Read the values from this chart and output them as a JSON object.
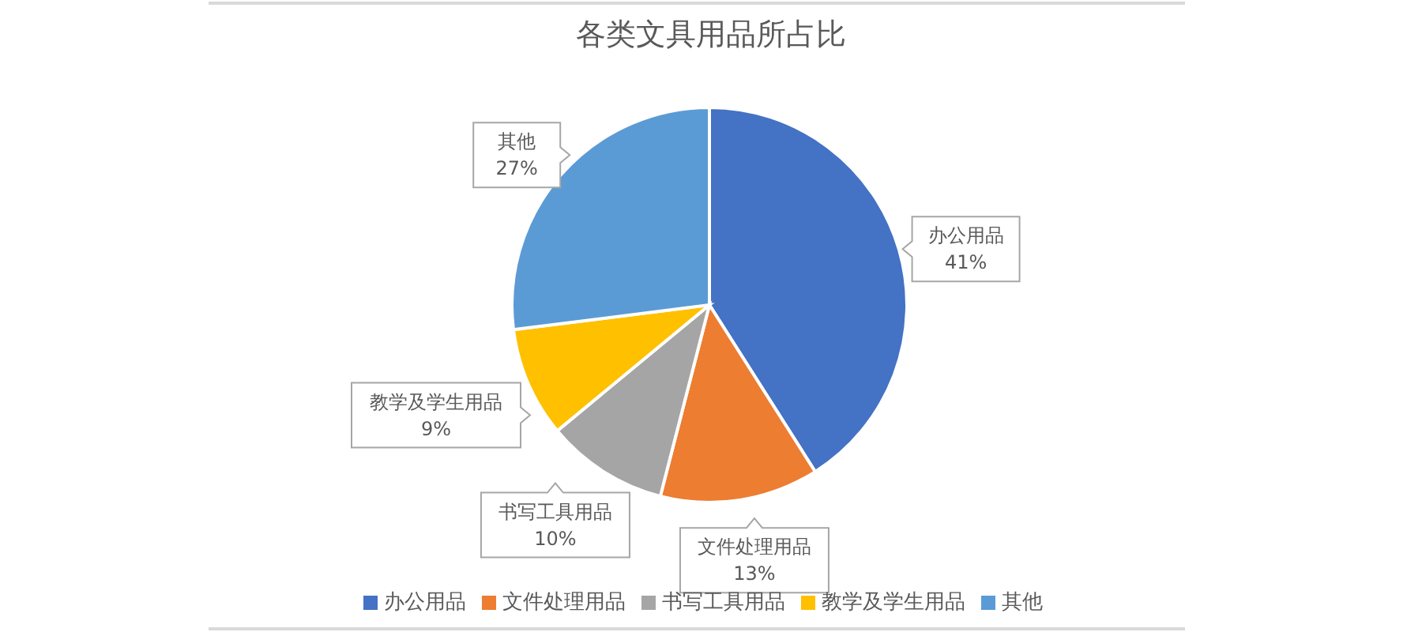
{
  "chart_data": {
    "type": "pie",
    "title": "各类文具用品所占比",
    "categories": [
      "办公用品",
      "文件处理用品",
      "书写工具用品",
      "教学及学生用品",
      "其他"
    ],
    "values": [
      41,
      13,
      10,
      9,
      27
    ],
    "colors": [
      "#4472c4",
      "#ed7d31",
      "#a5a5a5",
      "#ffc000",
      "#5b9bd5"
    ],
    "value_labels": [
      "41%",
      "13%",
      "10%",
      "9%",
      "27%"
    ],
    "legend": "bottom"
  }
}
